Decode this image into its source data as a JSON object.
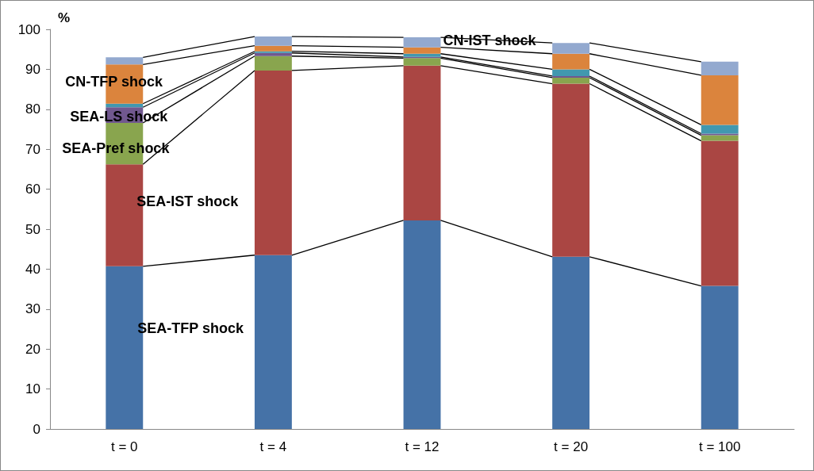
{
  "chart_data": {
    "type": "bar",
    "stacked": true,
    "ylabel": "%",
    "categories": [
      "t = 0",
      "t = 4",
      "t = 12",
      "t = 20",
      "t = 100"
    ],
    "ylim": [
      0,
      100
    ],
    "yticks": [
      0,
      10,
      20,
      30,
      40,
      50,
      60,
      70,
      80,
      90,
      100
    ],
    "grid": false,
    "legend": false,
    "series": [
      {
        "name": "SEA-TFP shock",
        "color": "#4572a7",
        "values": [
          40.7,
          43.5,
          52.2,
          43.1,
          35.8
        ]
      },
      {
        "name": "SEA-IST shock",
        "color": "#aa4643",
        "values": [
          25.5,
          46.2,
          38.7,
          43.3,
          36.3
        ]
      },
      {
        "name": "SEA-Pref shock",
        "color": "#89a54e",
        "values": [
          10.4,
          3.6,
          1.9,
          1.5,
          1.4
        ]
      },
      {
        "name": "SEA-LS shock",
        "color": "#71588f",
        "values": [
          3.9,
          0.8,
          0.3,
          0.4,
          0.4
        ]
      },
      {
        "color": "#4198af",
        "values": [
          0.9,
          0.4,
          0.8,
          1.7,
          2.2
        ]
      },
      {
        "name": "CN-TFP shock",
        "color": "#db843d",
        "values": [
          9.8,
          1.4,
          1.6,
          3.9,
          12.4
        ]
      },
      {
        "name": "CN-IST shock",
        "color": "#93a9cf",
        "values": [
          1.8,
          2.3,
          2.5,
          2.7,
          3.4
        ]
      }
    ]
  }
}
